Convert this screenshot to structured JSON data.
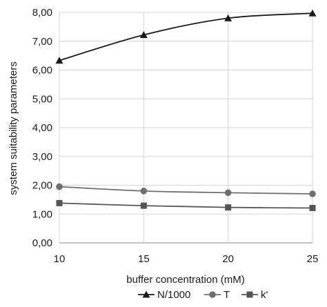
{
  "chart_data": {
    "type": "line",
    "xlabel": "buffer concentration (mM)",
    "ylabel": "system suitability parameters",
    "x": [
      10,
      15,
      20,
      25
    ],
    "x_ticks": [
      "10",
      "15",
      "20",
      "25"
    ],
    "y_ticks": [
      "0,00",
      "1,00",
      "2,00",
      "3,00",
      "4,00",
      "5,00",
      "6,00",
      "7,00",
      "8,00"
    ],
    "xlim": [
      10,
      25
    ],
    "ylim": [
      0,
      8
    ],
    "grid": "horizontal",
    "legend_position": "bottom",
    "series": [
      {
        "name": "N/1000",
        "marker": "triangle",
        "values": [
          6.33,
          7.22,
          7.8,
          7.97
        ],
        "color": "#1a1a1a"
      },
      {
        "name": "T",
        "marker": "circle",
        "values": [
          1.95,
          1.8,
          1.74,
          1.7
        ],
        "color": "#6e6e6e"
      },
      {
        "name": "k'",
        "marker": "square",
        "values": [
          1.38,
          1.29,
          1.23,
          1.21
        ],
        "color": "#555555"
      }
    ]
  }
}
